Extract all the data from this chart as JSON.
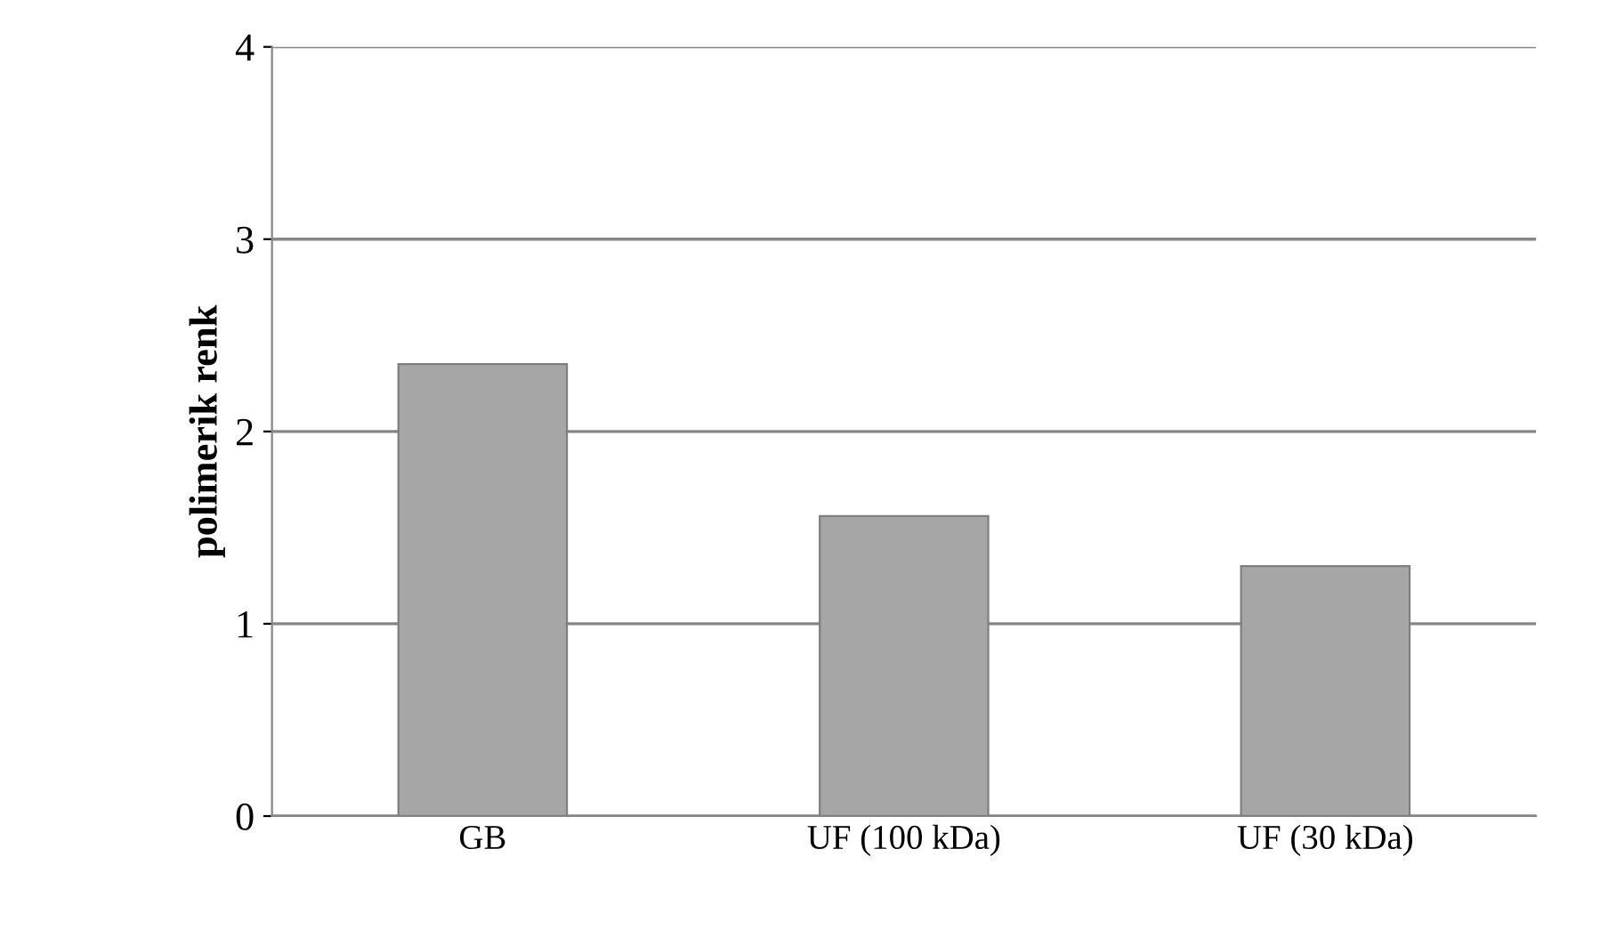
{
  "chart_data": {
    "type": "bar",
    "ylabel": "polimerik renk",
    "categories": [
      "GB",
      "UF (100 kDa)",
      "UF (30 kDa)"
    ],
    "values": [
      2.35,
      1.56,
      1.3
    ],
    "color": "#a6a6a6",
    "ylim": [
      0,
      4
    ],
    "yticks": [
      0,
      1,
      2,
      3,
      4
    ],
    "grid": "y",
    "legend": false
  }
}
